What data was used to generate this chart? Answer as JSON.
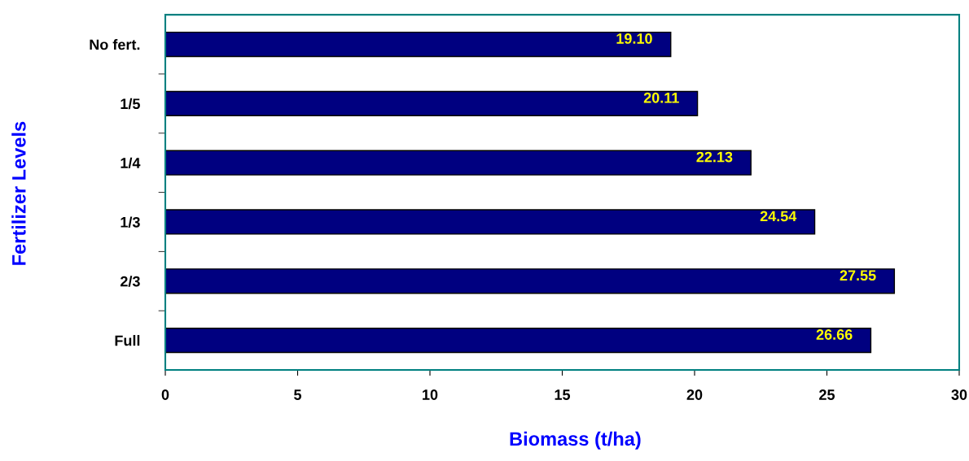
{
  "chart_data": {
    "type": "bar",
    "orientation": "horizontal",
    "xlabel": "Biomass (t/ha)",
    "ylabel": "Fertilizer Levels",
    "categories": [
      "No fert.",
      "1/5",
      "1/4",
      "1/3",
      "2/3",
      "Full"
    ],
    "values": [
      19.1,
      20.11,
      22.13,
      24.54,
      27.55,
      26.66
    ],
    "color": "#000080",
    "data_labels": true,
    "value_labels": [
      "19.10",
      "20.11",
      "22.13",
      "24.54",
      "27.55",
      "26.66"
    ],
    "xlim": [
      0,
      30
    ],
    "xticks": [
      0,
      5,
      10,
      15,
      20,
      25,
      30
    ],
    "grid": false,
    "legend": false
  }
}
